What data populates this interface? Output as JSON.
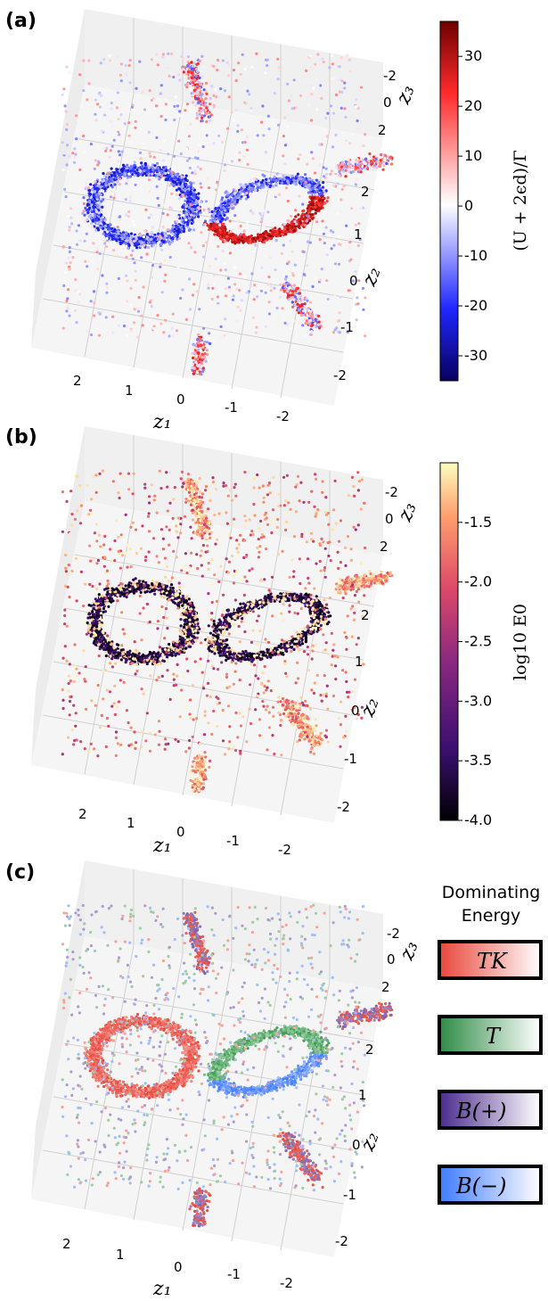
{
  "chart_data": [
    {
      "type": "scatter",
      "panel_label": "(a)",
      "xlabel": "z₁",
      "ylabel": "z₂",
      "zlabel": "z₃",
      "x_ticks": [
        "2",
        "1",
        "0",
        "-1",
        "-2"
      ],
      "y_ticks": [
        "2",
        "1",
        "0",
        "-1",
        "-2"
      ],
      "z_ticks": [
        "-2",
        "0",
        "2"
      ],
      "color_quantity": "(U + 2ϵ_d)/Γ",
      "colorbar": {
        "label": "(U + 2ϵd)/Γ",
        "ticks": [
          "30",
          "20",
          "10",
          "0",
          "-10",
          "-20",
          "-30"
        ],
        "range": [
          -35,
          37
        ],
        "colors": [
          "#08005e",
          "#1f27ff",
          "#ffffff",
          "#ff2a2a",
          "#6e0000"
        ]
      }
    },
    {
      "type": "scatter",
      "panel_label": "(b)",
      "xlabel": "z₁",
      "ylabel": "z₂",
      "zlabel": "z₃",
      "x_ticks": [
        "2",
        "1",
        "0",
        "-1",
        "-2"
      ],
      "y_ticks": [
        "2",
        "1",
        "0",
        "-1",
        "-2"
      ],
      "z_ticks": [
        "-2",
        "0",
        "2"
      ],
      "colorbar": {
        "label": "log10 E0",
        "ticks": [
          "-1.5",
          "-2.0",
          "-2.5",
          "-3.0",
          "-3.5",
          "-4.0"
        ],
        "range": [
          -4.0,
          -1.0
        ],
        "colors": [
          "#000004",
          "#3b0f70",
          "#8c2981",
          "#de4968",
          "#fe9f6d",
          "#fcfdbf"
        ]
      }
    },
    {
      "type": "scatter",
      "panel_label": "(c)",
      "xlabel": "z₁",
      "ylabel": "z₂",
      "zlabel": "z₃",
      "x_ticks": [
        "2",
        "1",
        "0",
        "-1",
        "-2"
      ],
      "y_ticks": [
        "2",
        "1",
        "0",
        "-1",
        "-2"
      ],
      "z_ticks": [
        "-2",
        "0",
        "2"
      ],
      "legend": {
        "title_line1": "Dominating",
        "title_line2": "Energy",
        "entries": [
          {
            "label": "T_K",
            "text": "TK",
            "color": "#e8463a"
          },
          {
            "label": "T",
            "text": "T",
            "color": "#3a9c4f"
          },
          {
            "label": "B(+)",
            "text": "B(+)",
            "color": "#5a3a9e"
          },
          {
            "label": "B(−)",
            "text": "B(−)",
            "color": "#3f7bff"
          }
        ]
      }
    }
  ]
}
